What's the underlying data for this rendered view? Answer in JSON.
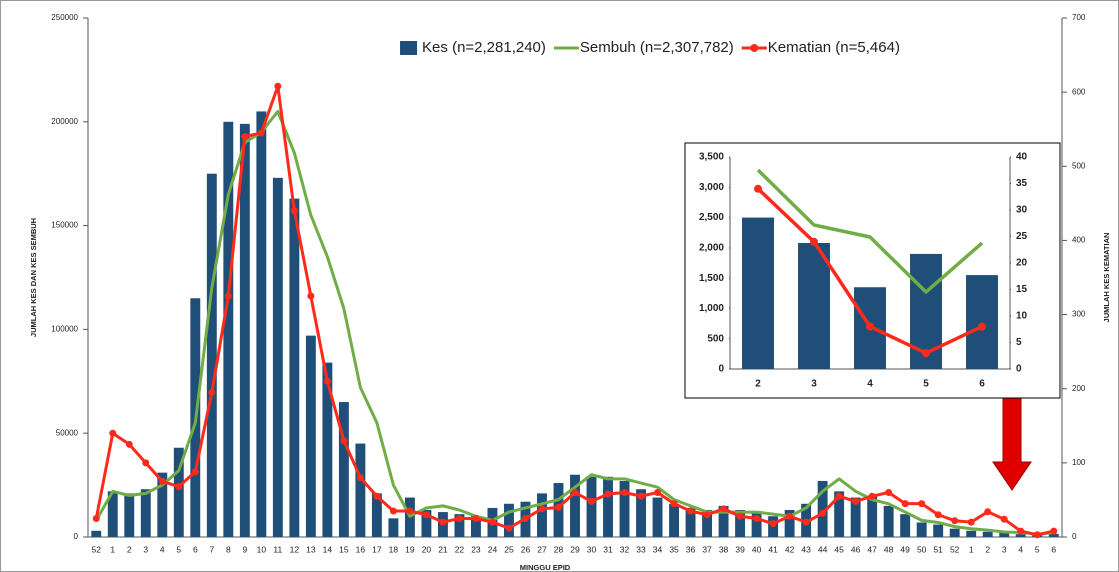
{
  "chart_data": [
    {
      "type": "combo",
      "categories": [
        "52",
        "1",
        "2",
        "3",
        "4",
        "5",
        "6",
        "7",
        "8",
        "9",
        "10",
        "11",
        "12",
        "13",
        "14",
        "15",
        "16",
        "17",
        "18",
        "19",
        "20",
        "21",
        "22",
        "23",
        "24",
        "25",
        "26",
        "27",
        "28",
        "29",
        "30",
        "31",
        "32",
        "33",
        "34",
        "35",
        "36",
        "37",
        "38",
        "39",
        "40",
        "41",
        "42",
        "43",
        "44",
        "45",
        "46",
        "47",
        "48",
        "49",
        "50",
        "51",
        "52",
        "1",
        "2",
        "3",
        "4",
        "5",
        "6"
      ],
      "x_label": "MINGGU EPID",
      "y_label": "JUMLAH KES DAN KES SEMBUH",
      "y2_label": "JUMLAH KES KEMATIAN",
      "legend": "top",
      "ylim": [
        0,
        250000
      ],
      "yticks": [
        0,
        50000,
        100000,
        150000,
        200000,
        250000
      ],
      "y2lim": [
        0,
        700
      ],
      "y2ticks": [
        0,
        100,
        200,
        300,
        400,
        500,
        600,
        700
      ],
      "series": [
        {
          "name": "Kes (n=2,281,240)",
          "kind": "bar",
          "color": "#1f4e79",
          "values": [
            3000,
            22000,
            21000,
            23000,
            31000,
            43000,
            115000,
            175000,
            200000,
            199000,
            205000,
            173000,
            163000,
            97000,
            84000,
            65000,
            45000,
            21000,
            9000,
            19000,
            13000,
            12000,
            11000,
            10000,
            14000,
            16000,
            17000,
            21000,
            26000,
            30000,
            29000,
            29000,
            27000,
            23000,
            19000,
            16000,
            14000,
            13000,
            15000,
            13000,
            12000,
            10000,
            13000,
            16000,
            27000,
            22000,
            19000,
            20000,
            15000,
            11000,
            7000,
            6000,
            4000,
            3000,
            2500,
            2100,
            1350,
            1900,
            1550
          ]
        },
        {
          "name": "Sembuh (n=2,307,782)",
          "kind": "line",
          "color": "#70ad47",
          "values": [
            8000,
            22000,
            20000,
            21000,
            25000,
            32000,
            55000,
            120000,
            165000,
            190000,
            195000,
            205000,
            185000,
            155000,
            135000,
            110000,
            72000,
            55000,
            25000,
            10000,
            14000,
            15000,
            13000,
            10000,
            8000,
            12000,
            14000,
            16000,
            18000,
            24000,
            30000,
            28000,
            28000,
            26000,
            24000,
            18000,
            15000,
            12000,
            12000,
            12000,
            12000,
            11000,
            10000,
            14000,
            22000,
            28000,
            22000,
            18000,
            16000,
            12000,
            8000,
            7000,
            5000,
            4000,
            3300,
            2400,
            2200,
            1300,
            2100
          ]
        },
        {
          "name": "Kematian (n=5,464)",
          "kind": "line",
          "markers": true,
          "axis": "y2",
          "color": "#ff2a1a",
          "values": [
            25,
            140,
            125,
            100,
            75,
            68,
            88,
            195,
            325,
            540,
            545,
            608,
            440,
            325,
            210,
            130,
            80,
            55,
            35,
            35,
            30,
            20,
            25,
            25,
            20,
            12,
            25,
            38,
            40,
            60,
            48,
            58,
            60,
            55,
            60,
            45,
            35,
            30,
            38,
            28,
            25,
            18,
            28,
            20,
            32,
            55,
            48,
            55,
            60,
            45,
            45,
            30,
            22,
            20,
            34,
            24,
            8,
            3,
            8
          ]
        }
      ]
    },
    {
      "type": "combo",
      "categories": [
        "2",
        "3",
        "4",
        "5",
        "6"
      ],
      "ylim": [
        0,
        3500
      ],
      "yticks": [
        0,
        500,
        {
          "value": 1000,
          "label": "1,000"
        },
        {
          "value": 1500,
          "label": "1,500"
        },
        {
          "value": 2000,
          "label": "2,000"
        },
        {
          "value": 2500,
          "label": "2,500"
        },
        {
          "value": 3000,
          "label": "3,000"
        },
        {
          "value": 3500,
          "label": "3,500"
        }
      ],
      "y2lim": [
        0,
        40
      ],
      "y2ticks": [
        0,
        5,
        10,
        15,
        20,
        25,
        30,
        35,
        40
      ],
      "series": [
        {
          "kind": "bar",
          "color": "#1f4e79",
          "values": [
            2500,
            2080,
            1350,
            1900,
            1550
          ]
        },
        {
          "kind": "line",
          "color": "#70ad47",
          "values": [
            3285,
            2377,
            2179,
            1271,
            2080
          ]
        },
        {
          "kind": "line",
          "markers": true,
          "axis": "y2",
          "color": "#ff2a1a",
          "values": [
            34,
            24,
            8,
            3,
            8
          ]
        }
      ]
    }
  ]
}
